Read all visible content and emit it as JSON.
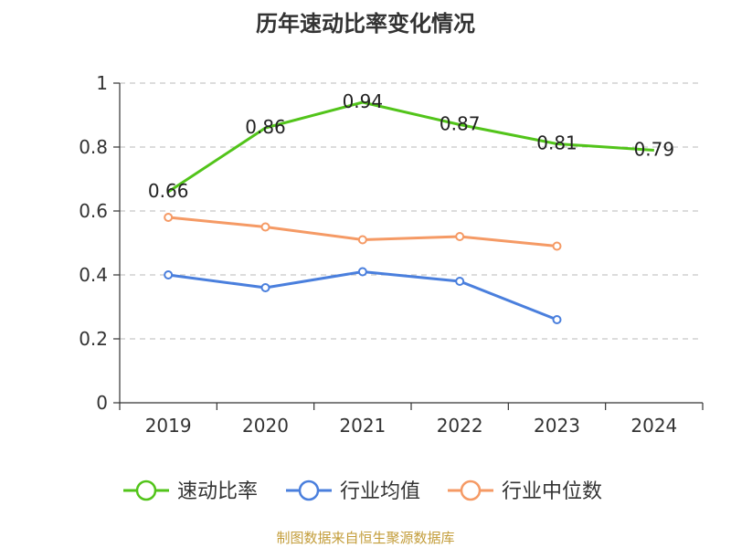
{
  "chart_data": {
    "type": "line",
    "title": "历年速动比率变化情况",
    "categories": [
      "2019",
      "2020",
      "2021",
      "2022",
      "2023",
      "2024"
    ],
    "y_ticks": [
      "0",
      "0.2",
      "0.4",
      "0.6",
      "0.8",
      "1"
    ],
    "ylim": [
      0,
      1
    ],
    "grid": true,
    "legend_position": "bottom",
    "series": [
      {
        "name": "速动比率",
        "color": "#52c41a",
        "show_labels": true,
        "show_markers": false,
        "values": [
          0.66,
          0.86,
          0.94,
          0.87,
          0.81,
          0.79
        ],
        "labels": [
          "0.66",
          "0.86",
          "0.94",
          "0.87",
          "0.81",
          "0.79"
        ]
      },
      {
        "name": "行业均值",
        "color": "#4a7fdd",
        "show_labels": false,
        "show_markers": true,
        "values": [
          0.4,
          0.36,
          0.41,
          0.38,
          0.26,
          null
        ]
      },
      {
        "name": "行业中位数",
        "color": "#f59a65",
        "show_labels": false,
        "show_markers": true,
        "values": [
          0.58,
          0.55,
          0.51,
          0.52,
          0.49,
          null
        ]
      }
    ]
  },
  "footer": {
    "source": "制图数据来自恒生聚源数据库"
  }
}
